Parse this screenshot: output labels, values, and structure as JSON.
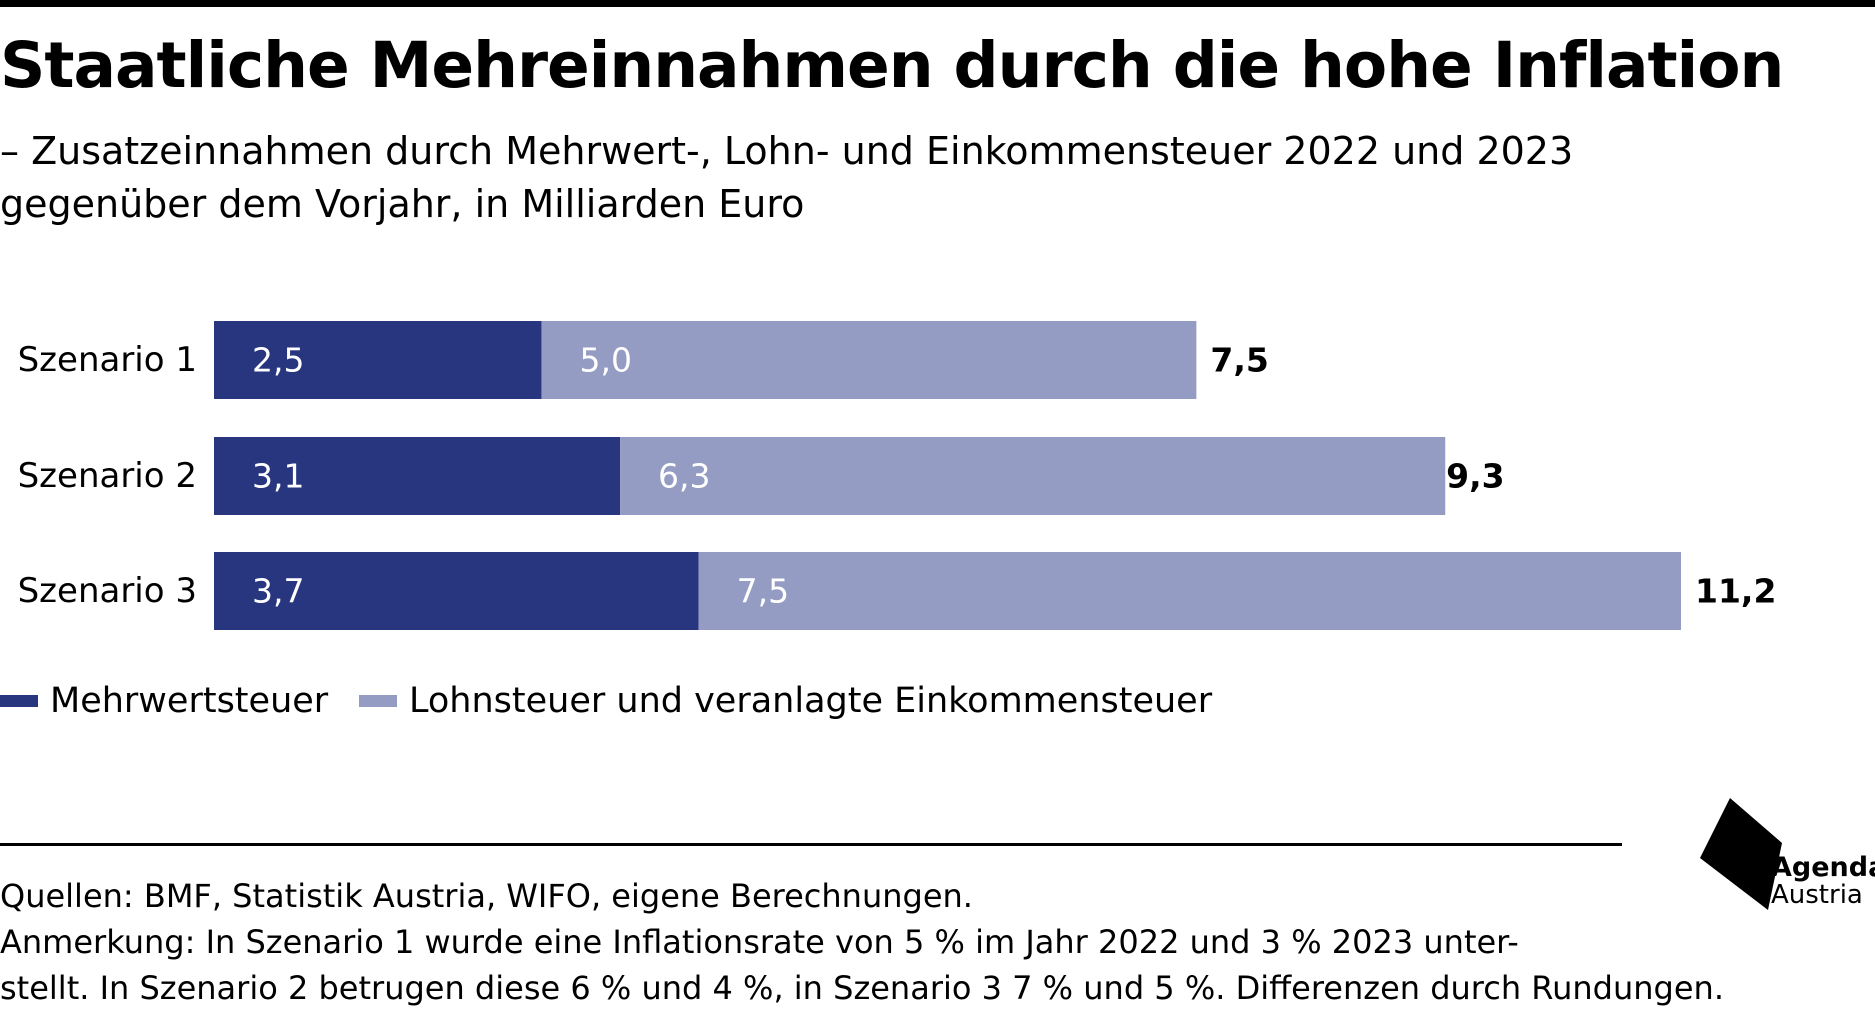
{
  "title": "Staatliche Mehreinnahmen durch die hohe Inflation",
  "subtitle_line1": "– Zusatzeinnahmen durch Mehrwert-, Lohn- und Einkommensteuer 2022 und 2023",
  "subtitle_line2": "gegenüber dem Vorjahr, in Milliarden Euro",
  "chart_data": {
    "type": "bar",
    "orientation": "horizontal",
    "stacked": true,
    "categories": [
      "Szenario 1",
      "Szenario 2",
      "Szenario 3"
    ],
    "series": [
      {
        "name": "Mehrwertsteuer",
        "values": [
          2.5,
          3.1,
          3.7
        ],
        "labels": [
          "2,5",
          "3,1",
          "3,7"
        ],
        "color": "#28357f"
      },
      {
        "name": "Lohnsteuer und veranlagte Einkommensteuer",
        "values": [
          5.0,
          6.3,
          7.5
        ],
        "labels": [
          "5,0",
          "6,3",
          "7,5"
        ],
        "color": "#949cc3"
      }
    ],
    "totals": [
      7.5,
      9.3,
      11.2
    ],
    "total_labels": [
      "7,5",
      "9,3",
      "11,2"
    ],
    "xlim": [
      0,
      11.2
    ],
    "grid": false,
    "legend_position": "bottom-left"
  },
  "legend": [
    {
      "label": "Mehrwertsteuer",
      "color": "#28357f"
    },
    {
      "label": "Lohnsteuer und veranlagte Einkommensteuer",
      "color": "#949cc3"
    }
  ],
  "footer": {
    "sources": "Quellen: BMF, Statistik Austria, WIFO, eigene Berechnungen.",
    "note_line1": "Anmerkung: In Szenario 1 wurde eine Inflationsrate von 5 % im Jahr 2022 und 3 % 2023 unter-",
    "note_line2": "stellt. In Szenario 2 betrugen diese 6 % und 4 %, in Szenario 3 7 % und 5 %. Differenzen durch Rundungen."
  },
  "logo": {
    "line1": "Agenda",
    "line2": "Austria"
  }
}
